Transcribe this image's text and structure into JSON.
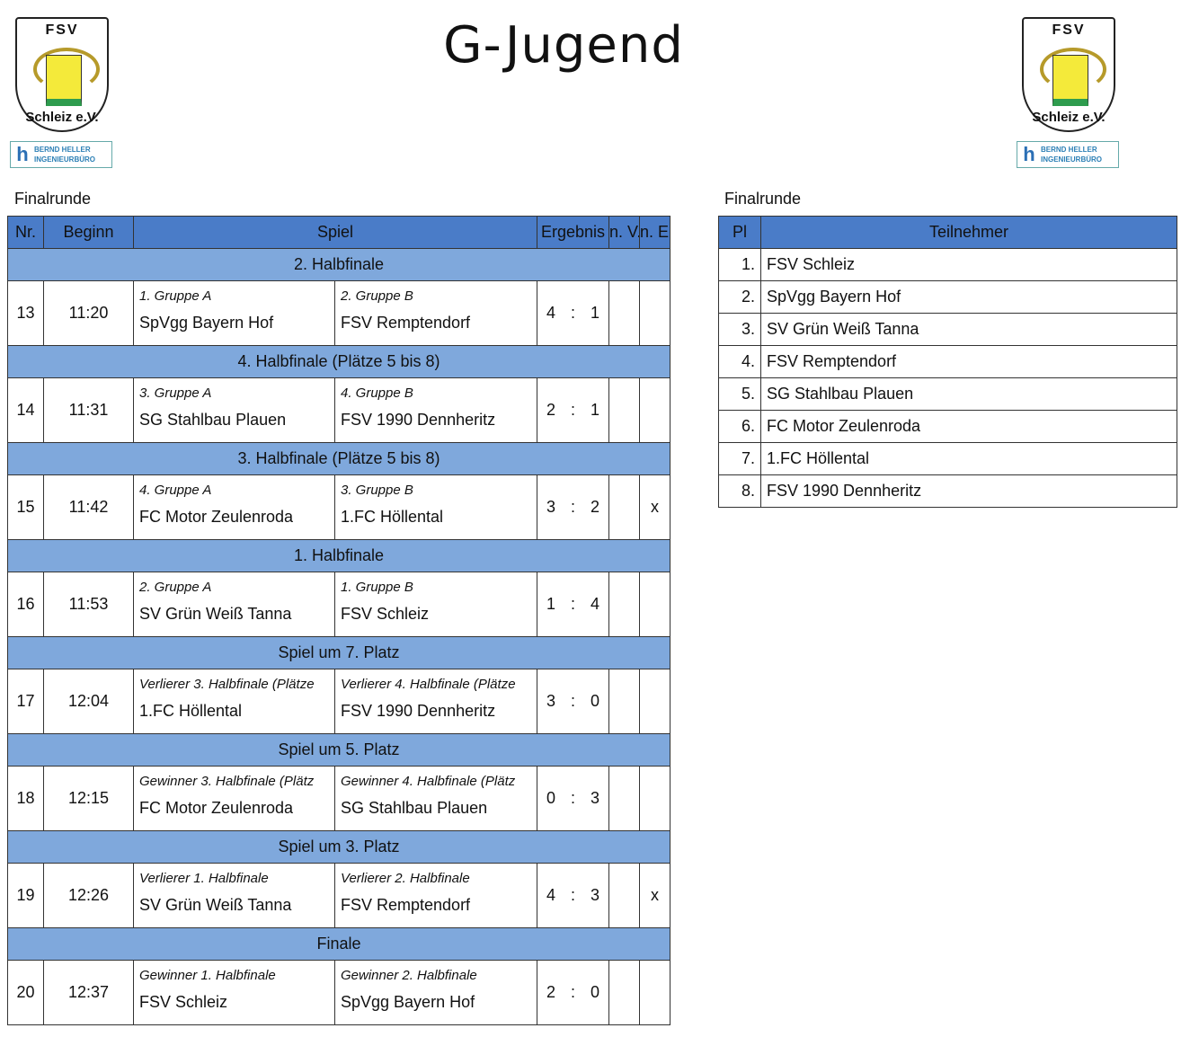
{
  "title": "G-Jugend",
  "logo": {
    "club_top": "FSV",
    "club_bottom": "Schleiz e.V.",
    "sponsor_line1": "BERND HELLER",
    "sponsor_line2": "INGENIEURBÜRO"
  },
  "colors": {
    "header": "#4a7cc8",
    "section": "#7fa8dc"
  },
  "left": {
    "caption": "Finalrunde",
    "headers": [
      "Nr.",
      "Beginn",
      "Spiel",
      "Ergebnis",
      "n. V.",
      "n. E."
    ],
    "blocks": [
      {
        "section": "2. Halbfinale",
        "nr": "13",
        "time": "11:20",
        "src1": "1. Gruppe A",
        "src2": "2. Gruppe B",
        "team1": "SpVgg Bayern Hof",
        "team2": "FSV Remptendorf",
        "g1": "4",
        "g2": "1",
        "nv": "",
        "ne": ""
      },
      {
        "section": "4. Halbfinale (Plätze 5 bis 8)",
        "nr": "14",
        "time": "11:31",
        "src1": "3. Gruppe A",
        "src2": "4. Gruppe B",
        "team1": "SG Stahlbau Plauen",
        "team2": "FSV 1990 Dennheritz",
        "g1": "2",
        "g2": "1",
        "nv": "",
        "ne": ""
      },
      {
        "section": "3. Halbfinale (Plätze 5 bis 8)",
        "nr": "15",
        "time": "11:42",
        "src1": "4. Gruppe A",
        "src2": "3. Gruppe B",
        "team1": "FC Motor Zeulenroda",
        "team2": "1.FC Höllental",
        "g1": "3",
        "g2": "2",
        "nv": "",
        "ne": "x"
      },
      {
        "section": "1. Halbfinale",
        "nr": "16",
        "time": "11:53",
        "src1": "2. Gruppe A",
        "src2": "1. Gruppe B",
        "team1": "SV Grün Weiß Tanna",
        "team2": "FSV Schleiz",
        "g1": "1",
        "g2": "4",
        "nv": "",
        "ne": ""
      },
      {
        "section": "Spiel um 7. Platz",
        "nr": "17",
        "time": "12:04",
        "src1": "Verlierer 3. Halbfinale (Plätze",
        "src2": "Verlierer 4. Halbfinale (Plätze",
        "team1": "1.FC Höllental",
        "team2": "FSV 1990 Dennheritz",
        "g1": "3",
        "g2": "0",
        "nv": "",
        "ne": ""
      },
      {
        "section": "Spiel um 5. Platz",
        "nr": "18",
        "time": "12:15",
        "src1": "Gewinner 3. Halbfinale (Plätz",
        "src2": "Gewinner 4. Halbfinale (Plätz",
        "team1": "FC Motor Zeulenroda",
        "team2": "SG Stahlbau Plauen",
        "g1": "0",
        "g2": "3",
        "nv": "",
        "ne": ""
      },
      {
        "section": "Spiel um 3. Platz",
        "nr": "19",
        "time": "12:26",
        "src1": "Verlierer 1. Halbfinale",
        "src2": "Verlierer 2. Halbfinale",
        "team1": "SV Grün Weiß Tanna",
        "team2": "FSV Remptendorf",
        "g1": "4",
        "g2": "3",
        "nv": "",
        "ne": "x"
      },
      {
        "section": "Finale",
        "nr": "20",
        "time": "12:37",
        "src1": "Gewinner 1. Halbfinale",
        "src2": "Gewinner 2. Halbfinale",
        "team1": "FSV Schleiz",
        "team2": "SpVgg Bayern Hof",
        "g1": "2",
        "g2": "0",
        "nv": "",
        "ne": ""
      }
    ]
  },
  "right": {
    "caption": "Finalrunde",
    "headers": [
      "Pl",
      "Teilnehmer"
    ],
    "rows": [
      {
        "pl": "1.",
        "team": "FSV Schleiz"
      },
      {
        "pl": "2.",
        "team": "SpVgg Bayern Hof"
      },
      {
        "pl": "3.",
        "team": "SV Grün Weiß Tanna"
      },
      {
        "pl": "4.",
        "team": "FSV Remptendorf"
      },
      {
        "pl": "5.",
        "team": "SG Stahlbau Plauen"
      },
      {
        "pl": "6.",
        "team": "FC Motor Zeulenroda"
      },
      {
        "pl": "7.",
        "team": "1.FC Höllental"
      },
      {
        "pl": "8.",
        "team": "FSV 1990 Dennheritz"
      }
    ]
  }
}
